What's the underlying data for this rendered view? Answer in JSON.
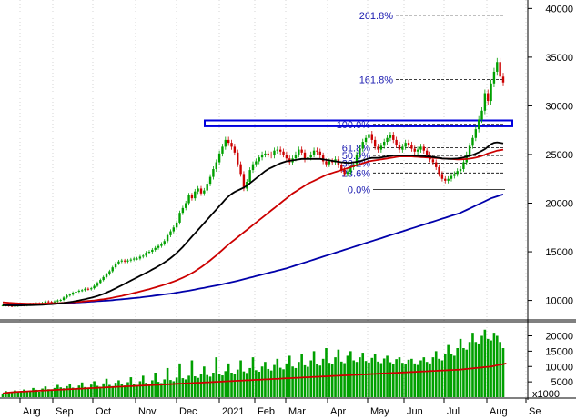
{
  "chart_data": {
    "type": "candlestick",
    "title": "",
    "price_axis": {
      "ylim": [
        8000,
        40500
      ],
      "ticks": [
        10000,
        15000,
        20000,
        25000,
        30000,
        35000,
        40000
      ]
    },
    "volume_axis": {
      "ylim": [
        0,
        24000
      ],
      "ticks": [
        5000,
        10000,
        15000,
        20000
      ],
      "unit": "x1000"
    },
    "x_ticks": [
      "Aug",
      "Sep",
      "Oct",
      "Nov",
      "Dec",
      "2021",
      "Feb",
      "Mar",
      "Apr",
      "May",
      "Jun",
      "Jul",
      "Aug",
      "Se"
    ],
    "price_close": [
      9500,
      9500,
      9450,
      9420,
      9450,
      9500,
      9520,
      9500,
      9600,
      9650,
      9620,
      9700,
      9680,
      9750,
      9900,
      9850,
      9800,
      9900,
      10000,
      10050,
      10300,
      10500,
      10600,
      10800,
      10900,
      11000,
      11050,
      11200,
      11150,
      11250,
      11500,
      11800,
      12100,
      12400,
      12700,
      13000,
      13400,
      13800,
      14000,
      14100,
      14000,
      14100,
      14200,
      14300,
      14300,
      14500,
      14600,
      14900,
      15000,
      15200,
      15400,
      15600,
      15800,
      16100,
      16700,
      17100,
      17500,
      18000,
      19000,
      19500,
      20000,
      20800,
      20500,
      21200,
      21500,
      21000,
      21300,
      22000,
      22700,
      23500,
      24200,
      25100,
      25800,
      26500,
      26200,
      25800,
      25200,
      24000,
      23000,
      21500,
      22200,
      23400,
      24000,
      24300,
      24700,
      25000,
      25100,
      25000,
      24900,
      25400,
      25500,
      25300,
      25000,
      24600,
      24200,
      24600,
      25000,
      25500,
      25200,
      24500,
      24700,
      25000,
      25400,
      25300,
      24900,
      24300,
      24000,
      24300,
      24200,
      24500,
      23900,
      23400,
      23000,
      23200,
      23700,
      24000,
      25000,
      25600,
      26300,
      26700,
      27100,
      26500,
      25800,
      25500,
      25900,
      26300,
      26700,
      27000,
      26500,
      26000,
      25500,
      25800,
      26200,
      26000,
      25600,
      25300,
      25500,
      25800,
      25400,
      25000,
      24500,
      24200,
      23700,
      23000,
      22500,
      22300,
      22500,
      22800,
      23000,
      23300,
      23500,
      24200,
      25000,
      25900,
      26700,
      27600,
      28600,
      29500,
      31300,
      30500,
      32300,
      33500,
      34500,
      33000,
      32400
    ],
    "ma_short": [
      9500,
      9495,
      9490,
      9485,
      9480,
      9480,
      9485,
      9490,
      9500,
      9510,
      9520,
      9530,
      9540,
      9560,
      9580,
      9600,
      9620,
      9640,
      9670,
      9700,
      9740,
      9780,
      9830,
      9880,
      9940,
      10000,
      10060,
      10130,
      10200,
      10280,
      10360,
      10450,
      10560,
      10670,
      10800,
      10940,
      11090,
      11240,
      11400,
      11560,
      11720,
      11880,
      12040,
      12200,
      12360,
      12520,
      12680,
      12840,
      13000,
      13170,
      13340,
      13520,
      13710,
      13910,
      14120,
      14350,
      14600,
      14880,
      15180,
      15500,
      15850,
      16200,
      16550,
      16900,
      17250,
      17600,
      17950,
      18300,
      18650,
      19000,
      19350,
      19700,
      20050,
      20400,
      20700,
      20950,
      21150,
      21300,
      21450,
      21600,
      21800,
      22050,
      22300,
      22550,
      22800,
      23050,
      23300,
      23500,
      23650,
      23800,
      23950,
      24100,
      24200,
      24300,
      24350,
      24400,
      24450,
      24500,
      24550,
      24550,
      24550,
      24550,
      24550,
      24550,
      24550,
      24500,
      24450,
      24400,
      24350,
      24300,
      24250,
      24200,
      24180,
      24150,
      24150,
      24200,
      24250,
      24300,
      24400,
      24500,
      24600,
      24650,
      24650,
      24650,
      24700,
      24750,
      24800,
      24850,
      24900,
      24900,
      24900,
      24900,
      24900,
      24900,
      24900,
      24880,
      24860,
      24840,
      24820,
      24800,
      24780,
      24740,
      24700,
      24650,
      24600,
      24580,
      24560,
      24560,
      24580,
      24600,
      24640,
      24700,
      24780,
      24860,
      24960,
      25080,
      25220,
      25380,
      25560,
      25800,
      26050,
      26200,
      26250,
      26200,
      26150
    ],
    "ma_mid": [
      9800,
      9780,
      9760,
      9740,
      9720,
      9700,
      9690,
      9680,
      9670,
      9660,
      9660,
      9660,
      9660,
      9670,
      9680,
      9690,
      9700,
      9710,
      9720,
      9740,
      9760,
      9780,
      9800,
      9820,
      9840,
      9860,
      9880,
      9910,
      9940,
      9970,
      10000,
      10040,
      10080,
      10120,
      10170,
      10220,
      10280,
      10340,
      10400,
      10470,
      10540,
      10610,
      10680,
      10760,
      10840,
      10920,
      11000,
      11080,
      11160,
      11250,
      11340,
      11430,
      11520,
      11620,
      11720,
      11830,
      11940,
      12060,
      12190,
      12330,
      12480,
      12640,
      12810,
      13000,
      13200,
      13420,
      13640,
      13880,
      14120,
      14380,
      14640,
      14920,
      15200,
      15480,
      15750,
      16000,
      16250,
      16500,
      16750,
      17000,
      17250,
      17500,
      17750,
      18000,
      18250,
      18500,
      18750,
      19000,
      19250,
      19500,
      19750,
      20000,
      20250,
      20500,
      20750,
      21000,
      21200,
      21400,
      21600,
      21800,
      22000,
      22150,
      22300,
      22450,
      22600,
      22750,
      22900,
      23000,
      23100,
      23200,
      23300,
      23400,
      23500,
      23600,
      23700,
      23800,
      23900,
      24000,
      24100,
      24200,
      24300,
      24350,
      24400,
      24450,
      24500,
      24550,
      24600,
      24650,
      24700,
      24750,
      24800,
      24800,
      24800,
      24800,
      24800,
      24780,
      24760,
      24740,
      24720,
      24700,
      24680,
      24660,
      24640,
      24620,
      24600,
      24580,
      24560,
      24540,
      24520,
      24500,
      24500,
      24520,
      24540,
      24580,
      24620,
      24680,
      24760,
      24860,
      24980,
      25100,
      25200,
      25300,
      25400,
      25450,
      25500
    ],
    "ma_long": [
      9600,
      9600,
      9600,
      9600,
      9600,
      9600,
      9600,
      9600,
      9600,
      9600,
      9600,
      9600,
      9610,
      9620,
      9630,
      9640,
      9650,
      9660,
      9670,
      9680,
      9700,
      9720,
      9740,
      9760,
      9780,
      9800,
      9820,
      9840,
      9860,
      9880,
      9900,
      9920,
      9940,
      9960,
      9980,
      10000,
      10030,
      10060,
      10090,
      10120,
      10150,
      10180,
      10210,
      10240,
      10270,
      10300,
      10340,
      10380,
      10420,
      10460,
      10500,
      10540,
      10580,
      10620,
      10660,
      10700,
      10750,
      10800,
      10850,
      10900,
      10950,
      11000,
      11060,
      11120,
      11180,
      11240,
      11300,
      11360,
      11420,
      11480,
      11540,
      11600,
      11670,
      11740,
      11810,
      11880,
      11950,
      12020,
      12100,
      12180,
      12260,
      12340,
      12420,
      12500,
      12580,
      12660,
      12740,
      12820,
      12900,
      12980,
      13060,
      13140,
      13220,
      13300,
      13400,
      13500,
      13600,
      13700,
      13800,
      13900,
      14000,
      14100,
      14200,
      14300,
      14400,
      14500,
      14600,
      14700,
      14800,
      14900,
      15000,
      15100,
      15200,
      15300,
      15400,
      15500,
      15600,
      15700,
      15800,
      15900,
      16000,
      16100,
      16200,
      16300,
      16400,
      16500,
      16600,
      16700,
      16800,
      16900,
      17000,
      17100,
      17200,
      17300,
      17400,
      17500,
      17600,
      17700,
      17800,
      17900,
      18000,
      18100,
      18200,
      18300,
      18400,
      18500,
      18600,
      18700,
      18800,
      18900,
      19000,
      19150,
      19300,
      19450,
      19600,
      19750,
      19900,
      20050,
      20200,
      20350,
      20500,
      20600,
      20700,
      20800,
      20900
    ],
    "volume": [
      1200,
      2000,
      1500,
      1800,
      2200,
      1600,
      1900,
      2500,
      1700,
      2100,
      3000,
      2400,
      1800,
      2800,
      3500,
      2600,
      2200,
      3000,
      4000,
      3200,
      2900,
      3600,
      4200,
      3100,
      2700,
      3800,
      4800,
      3300,
      3000,
      4100,
      5200,
      3700,
      3400,
      4500,
      6000,
      4000,
      3600,
      4700,
      5500,
      4200,
      3800,
      4900,
      6500,
      4400,
      4000,
      5200,
      7000,
      4700,
      4300,
      5500,
      8000,
      5000,
      4600,
      5800,
      9500,
      5600,
      5200,
      6400,
      11000,
      6200,
      5800,
      7000,
      12000,
      6800,
      6300,
      7500,
      10000,
      7200,
      6700,
      8000,
      13000,
      7600,
      7100,
      8500,
      11000,
      8000,
      7500,
      9000,
      12000,
      8400,
      7900,
      9500,
      13000,
      8800,
      8300,
      10000,
      11500,
      9200,
      8700,
      10500,
      12500,
      9600,
      9100,
      11000,
      13500,
      10000,
      9500,
      11500,
      14000,
      10400,
      9900,
      12000,
      15000,
      10800,
      10300,
      12500,
      16000,
      11200,
      10700,
      13000,
      15500,
      11600,
      11100,
      13500,
      15000,
      12000,
      11500,
      13000,
      14500,
      11800,
      11300,
      12800,
      14000,
      11600,
      11100,
      12600,
      13500,
      11400,
      10900,
      12400,
      13000,
      11200,
      10700,
      12200,
      12500,
      11000,
      10500,
      12000,
      13000,
      11500,
      11000,
      13000,
      15000,
      12500,
      12000,
      14000,
      17000,
      14000,
      13500,
      16000,
      19000,
      16000,
      15500,
      18000,
      21000,
      18000,
      17500,
      20000,
      22000,
      19000,
      18500,
      21000,
      20000,
      18000,
      16000
    ],
    "volume_ma": [
      1200,
      1400,
      1500,
      1600,
      1700,
      1750,
      1800,
      1850,
      1900,
      1950,
      2000,
      2050,
      2100,
      2150,
      2200,
      2250,
      2300,
      2350,
      2400,
      2450,
      2500,
      2550,
      2600,
      2650,
      2700,
      2750,
      2800,
      2850,
      2900,
      2950,
      3000,
      3050,
      3100,
      3150,
      3200,
      3250,
      3300,
      3350,
      3400,
      3450,
      3500,
      3550,
      3600,
      3650,
      3700,
      3750,
      3800,
      3850,
      3900,
      3950,
      4000,
      4050,
      4100,
      4150,
      4200,
      4250,
      4300,
      4350,
      4400,
      4450,
      4500,
      4550,
      4600,
      4650,
      4700,
      4750,
      4800,
      4850,
      4900,
      4950,
      5000,
      5050,
      5100,
      5150,
      5200,
      5250,
      5300,
      5350,
      5400,
      5450,
      5500,
      5550,
      5600,
      5650,
      5700,
      5750,
      5800,
      5850,
      5900,
      5950,
      6000,
      6050,
      6100,
      6150,
      6200,
      6250,
      6300,
      6350,
      6400,
      6450,
      6500,
      6550,
      6600,
      6650,
      6700,
      6750,
      6800,
      6850,
      6900,
      6950,
      7000,
      7050,
      7100,
      7150,
      7200,
      7250,
      7300,
      7350,
      7400,
      7450,
      7500,
      7550,
      7600,
      7650,
      7700,
      7750,
      7800,
      7850,
      7900,
      7950,
      8000,
      8050,
      8100,
      8150,
      8200,
      8250,
      8300,
      8350,
      8400,
      8450,
      8500,
      8550,
      8600,
      8650,
      8700,
      8750,
      8800,
      8850,
      8900,
      8950,
      9000,
      9100,
      9200,
      9300,
      9400,
      9500,
      9600,
      9700,
      9800,
      9900,
      10000,
      10200,
      10400,
      10600,
      10800,
      11000
    ],
    "fibonacci": [
      {
        "label": "261.8%",
        "value": 39300
      },
      {
        "label": "161.8%",
        "value": 32700
      },
      {
        "label": "100.0%",
        "value": 28100
      },
      {
        "label": "61.8%",
        "value": 25700
      },
      {
        "label": "50.0%",
        "value": 24900
      },
      {
        "label": "38.2%",
        "value": 24100
      },
      {
        "label": "23.6%",
        "value": 23100
      },
      {
        "label": "0.0%",
        "value": 21400
      }
    ],
    "resistance_zone": {
      "low": 27900,
      "high": 28500
    }
  },
  "colors": {
    "up_candle": "#00a000",
    "down_candle": "#cc0000",
    "ma_short": "#000000",
    "ma_mid": "#cc0000",
    "ma_long": "#0000aa",
    "volume_bar": "#00a000",
    "volume_ma": "#cc0000",
    "fib_line": "#000000",
    "fib_label": "#1a1ab0",
    "zone_border": "#0000dd",
    "grid": "#bbbbbb"
  }
}
